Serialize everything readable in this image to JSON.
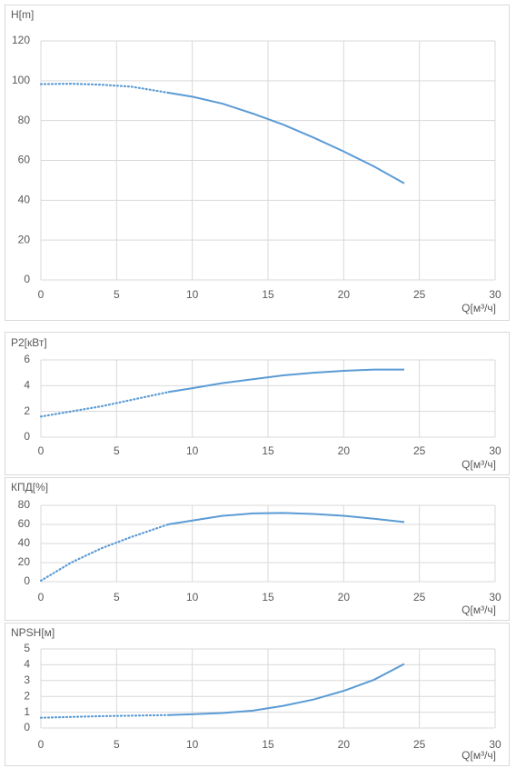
{
  "chart_data": [
    {
      "type": "line",
      "ylabel": "H[m]",
      "xlabel": "Q[м³/ч]",
      "x": [
        0,
        2,
        4,
        6,
        8.4,
        10,
        12,
        14,
        16,
        18,
        20,
        22,
        24
      ],
      "series": [
        {
          "color": "#5b9bd5",
          "dash": "dotted",
          "values": [
            98.3,
            98.5,
            98,
            97,
            94,
            null,
            null,
            null,
            null,
            null,
            null,
            null,
            null
          ]
        },
        {
          "color": "#5b9bd5",
          "dash": "solid",
          "values": [
            null,
            null,
            null,
            null,
            94,
            92,
            88.5,
            83.5,
            78,
            71.5,
            64.5,
            57,
            48.5
          ]
        }
      ],
      "xlim": [
        0,
        30
      ],
      "xticks": [
        0,
        5,
        10,
        15,
        20,
        25,
        30
      ],
      "ylim": [
        0,
        120
      ],
      "yticks": [
        0,
        20,
        40,
        60,
        80,
        100,
        120
      ],
      "grid": true
    },
    {
      "type": "line",
      "ylabel": "P2[кВт]",
      "xlabel": "Q[м³/ч]",
      "x": [
        0,
        2,
        4,
        6,
        8.4,
        10,
        12,
        14,
        16,
        18,
        20,
        22,
        24
      ],
      "series": [
        {
          "color": "#5b9bd5",
          "dash": "dotted",
          "values": [
            1.6,
            2.0,
            2.4,
            2.9,
            3.5,
            null,
            null,
            null,
            null,
            null,
            null,
            null,
            null
          ]
        },
        {
          "color": "#5b9bd5",
          "dash": "solid",
          "values": [
            null,
            null,
            null,
            null,
            3.5,
            3.8,
            4.2,
            4.5,
            4.8,
            5.0,
            5.15,
            5.25,
            5.25
          ]
        }
      ],
      "xlim": [
        0,
        30
      ],
      "xticks": [
        0,
        5,
        10,
        15,
        20,
        25,
        30
      ],
      "ylim": [
        0,
        6
      ],
      "yticks": [
        0,
        2,
        4,
        6
      ],
      "grid": true
    },
    {
      "type": "line",
      "ylabel": "КПД[%]",
      "xlabel": "Q[м³/ч]",
      "x": [
        0,
        2,
        4,
        6,
        8.4,
        10,
        12,
        14,
        16,
        18,
        20,
        22,
        24
      ],
      "series": [
        {
          "color": "#5b9bd5",
          "dash": "dotted",
          "values": [
            1,
            20,
            35,
            47,
            60,
            null,
            null,
            null,
            null,
            null,
            null,
            null,
            null
          ]
        },
        {
          "color": "#5b9bd5",
          "dash": "solid",
          "values": [
            null,
            null,
            null,
            null,
            60,
            64,
            69,
            71.5,
            72,
            71,
            69,
            66,
            62.5
          ]
        }
      ],
      "xlim": [
        0,
        30
      ],
      "xticks": [
        0,
        5,
        10,
        15,
        20,
        25,
        30
      ],
      "ylim": [
        0,
        80
      ],
      "yticks": [
        0,
        20,
        40,
        60,
        80
      ],
      "grid": true
    },
    {
      "type": "line",
      "ylabel": "NPSH[м]",
      "xlabel": "Q[м³/ч]",
      "x": [
        0,
        2,
        4,
        6,
        8.4,
        10,
        12,
        14,
        16,
        18,
        20,
        22,
        24
      ],
      "series": [
        {
          "color": "#5b9bd5",
          "dash": "dotted",
          "values": [
            0.65,
            0.7,
            0.75,
            0.78,
            0.82,
            null,
            null,
            null,
            null,
            null,
            null,
            null,
            null
          ]
        },
        {
          "color": "#5b9bd5",
          "dash": "solid",
          "values": [
            null,
            null,
            null,
            null,
            0.82,
            0.87,
            0.95,
            1.1,
            1.4,
            1.8,
            2.35,
            3.05,
            4.05
          ]
        }
      ],
      "xlim": [
        0,
        30
      ],
      "xticks": [
        0,
        5,
        10,
        15,
        20,
        25,
        30
      ],
      "ylim": [
        0,
        5
      ],
      "yticks": [
        0,
        1,
        2,
        3,
        4,
        5
      ],
      "grid": true
    }
  ]
}
